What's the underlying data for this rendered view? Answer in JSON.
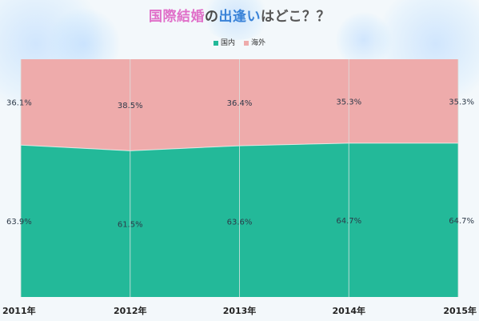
{
  "title": {
    "part1": "国際結婚",
    "part2": "の",
    "part3": "出逢い",
    "part4": "はどこ？？"
  },
  "colors": {
    "domestic": "#23b999",
    "overseas": "#eeabab",
    "grid": "#d8e3e0",
    "label": "#2e3b4a"
  },
  "chart_data": {
    "type": "area",
    "stacked": true,
    "normalized_percent": true,
    "categories": [
      "2011年",
      "2012年",
      "2013年",
      "2014年",
      "2015年"
    ],
    "series": [
      {
        "name": "国内",
        "values": [
          63.9,
          61.5,
          63.6,
          64.7,
          64.7
        ],
        "labels": [
          "63.9%",
          "61.5%",
          "63.6%",
          "64.7%",
          "64.7%"
        ]
      },
      {
        "name": "海外",
        "values": [
          36.1,
          38.5,
          36.4,
          35.3,
          35.3
        ],
        "labels": [
          "36.1%",
          "38.5%",
          "36.4%",
          "35.3%",
          "35.3%"
        ]
      }
    ],
    "ylim": [
      0,
      100
    ],
    "legend": "top-center",
    "grid": "vertical"
  }
}
